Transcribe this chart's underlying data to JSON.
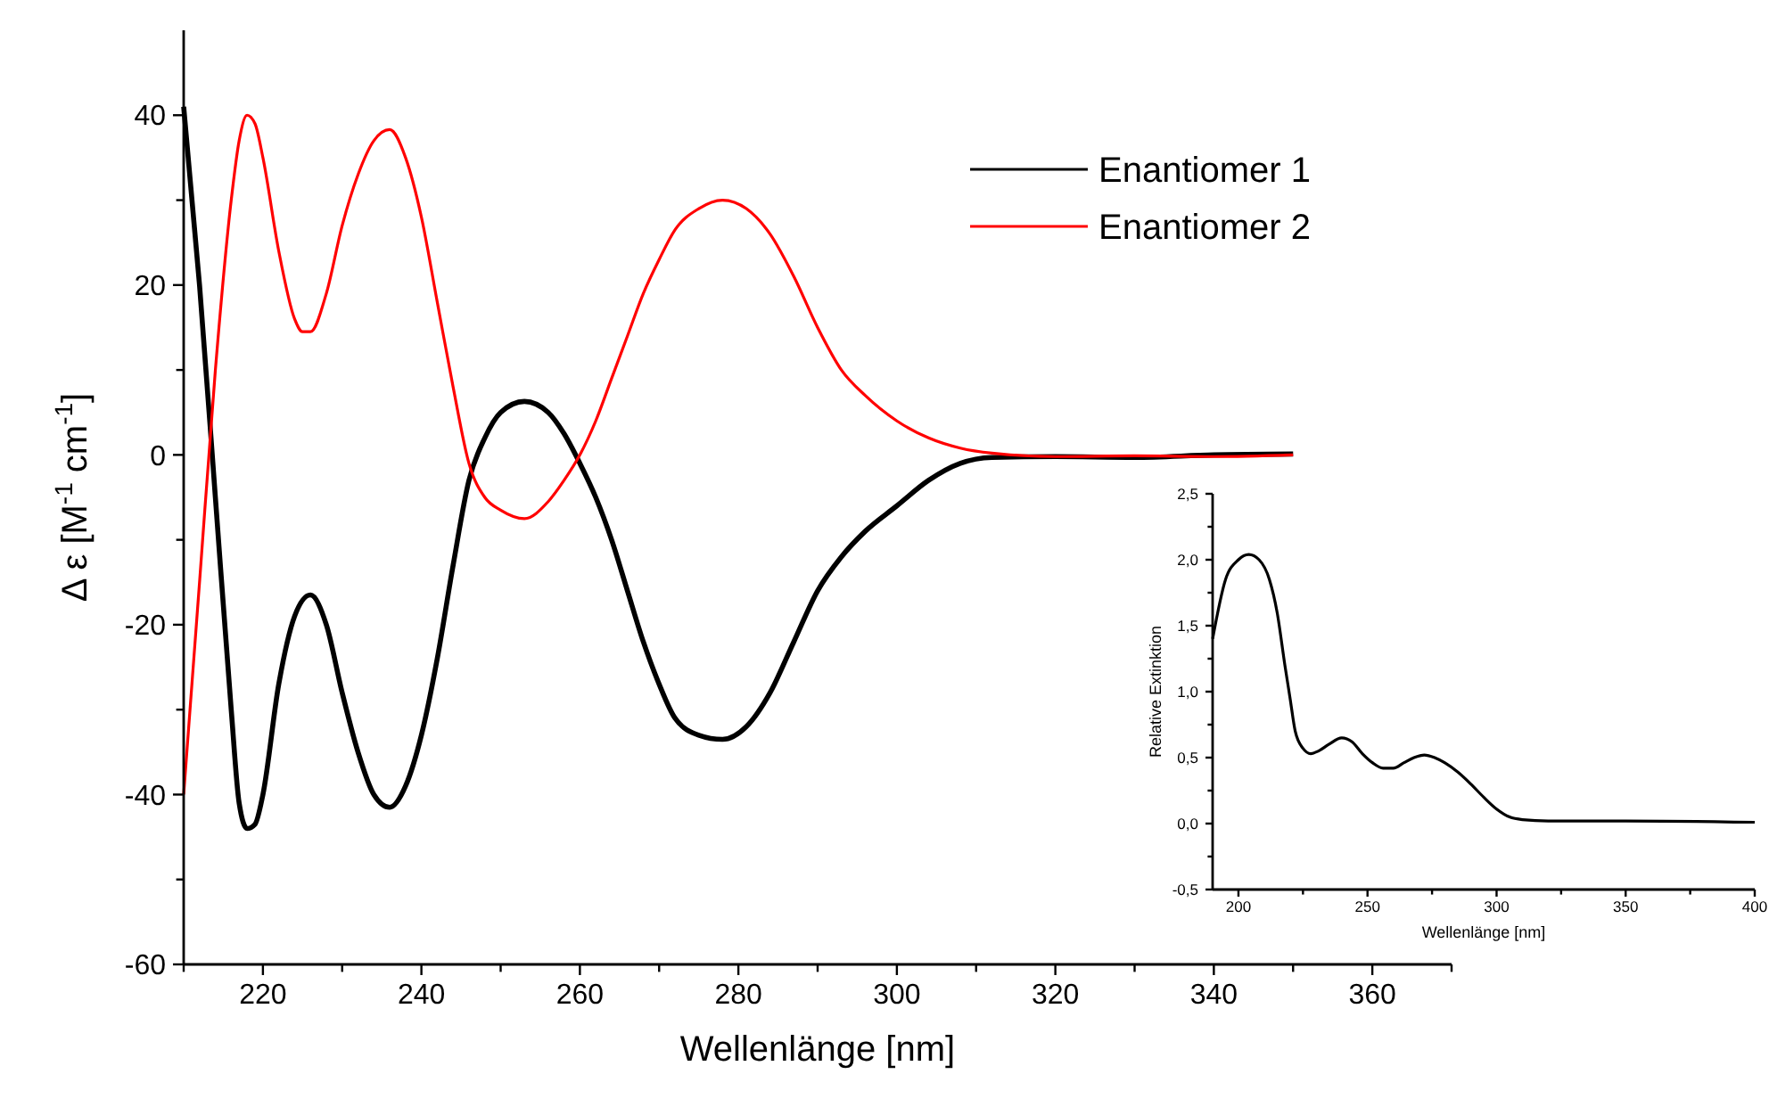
{
  "chart_data": [
    {
      "type": "line",
      "xlabel": "Wellenlänge [nm]",
      "ylabel": "Δ ε [M$^{-1}$ cm$^{-1}$]",
      "xlim": [
        210,
        370
      ],
      "ylim": [
        -60,
        50
      ],
      "xticks": [
        {
          "value": 210,
          "label": null
        },
        220,
        {
          "value": 230,
          "label": null
        },
        240,
        {
          "value": 250,
          "label": null
        },
        260,
        {
          "value": 270,
          "label": null
        },
        280,
        {
          "value": 290,
          "label": null
        },
        300,
        {
          "value": 310,
          "label": null
        },
        320,
        {
          "value": 330,
          "label": null
        },
        340,
        {
          "value": 350,
          "label": null
        },
        360,
        {
          "value": 370,
          "label": null
        }
      ],
      "yticks": [
        -60,
        {
          "value": -50,
          "label": null
        },
        -40,
        {
          "value": -30,
          "label": null
        },
        -20,
        {
          "value": -10,
          "label": null
        },
        0,
        {
          "value": 10,
          "label": null
        },
        20,
        {
          "value": 30,
          "label": null
        },
        40
      ],
      "legend": "top right",
      "series": [
        {
          "name": "Enantiomer 1",
          "color": "#000000",
          "x": [
            210,
            212,
            214,
            216,
            217,
            218,
            219,
            220,
            222,
            224,
            226,
            228,
            230,
            232,
            234,
            236,
            238,
            240,
            242,
            244,
            246,
            248,
            250,
            253,
            256,
            258,
            260,
            262,
            264,
            266,
            268,
            270,
            272,
            275,
            278,
            281,
            284,
            287,
            290,
            293,
            296,
            300,
            304,
            308,
            312,
            320,
            330,
            340,
            350
          ],
          "values": [
            41,
            20,
            -5,
            -30,
            -41,
            -44,
            -43.5,
            -40,
            -27,
            -19,
            -16.5,
            -20,
            -28,
            -35,
            -40,
            -41.5,
            -39,
            -33,
            -24,
            -13,
            -3,
            2,
            5,
            6.3,
            5,
            2.5,
            -1,
            -5,
            -10,
            -16,
            -22,
            -27,
            -31,
            -33,
            -33.5,
            -32,
            -28,
            -22,
            -16,
            -12,
            -9,
            -6,
            -3,
            -1,
            -0.3,
            -0.2,
            -0.3,
            0,
            0.1
          ]
        },
        {
          "name": "Enantiomer 2",
          "color": "#ff0000",
          "x": [
            210,
            212,
            214,
            216,
            217,
            218,
            219,
            220,
            222,
            224,
            225,
            226,
            228,
            230,
            232,
            234,
            236,
            238,
            240,
            242,
            244,
            246,
            248,
            250,
            253,
            256,
            258,
            260,
            262,
            264,
            266,
            268,
            270,
            272,
            275,
            278,
            281,
            284,
            287,
            290,
            293,
            296,
            300,
            304,
            308,
            312,
            320,
            330,
            340,
            350
          ],
          "values": [
            -40,
            -15,
            10,
            30,
            37,
            40,
            39,
            35,
            24,
            16,
            14.5,
            14.5,
            19,
            27,
            33,
            37,
            38.3,
            35,
            28,
            18,
            8,
            -1,
            -5,
            -6.5,
            -7.5,
            -5.5,
            -3,
            0,
            4,
            9,
            14,
            19,
            23,
            26.5,
            29,
            30,
            29,
            26,
            21,
            15,
            10,
            7,
            4,
            2,
            0.8,
            0.2,
            -0.2,
            -0.1,
            -0.2,
            0
          ]
        }
      ]
    },
    {
      "type": "line",
      "xlabel": "Wellenlänge [nm]",
      "ylabel": "Relative Extinktion",
      "xlim": [
        190,
        400
      ],
      "ylim": [
        -0.5,
        2.5
      ],
      "xticks": [
        200,
        {
          "value": 225,
          "label": null
        },
        250,
        {
          "value": 275,
          "label": null
        },
        300,
        {
          "value": 325,
          "label": null
        },
        350,
        {
          "value": 375,
          "label": null
        },
        400
      ],
      "yticks": [
        {
          "value": -0.5,
          "label": "-0,5"
        },
        {
          "value": -0.25,
          "label": null
        },
        {
          "value": 0,
          "label": "0,0"
        },
        {
          "value": 0.25,
          "label": null
        },
        {
          "value": 0.5,
          "label": "0,5"
        },
        {
          "value": 0.75,
          "label": null
        },
        {
          "value": 1,
          "label": "1,0"
        },
        {
          "value": 1.25,
          "label": null
        },
        {
          "value": 1.5,
          "label": "1,5"
        },
        {
          "value": 1.75,
          "label": null
        },
        {
          "value": 2,
          "label": "2,0"
        },
        {
          "value": 2.25,
          "label": null
        },
        {
          "value": 2.5,
          "label": "2,5"
        }
      ],
      "series": [
        {
          "color": "#000000",
          "x": [
            190,
            195,
            200,
            204,
            208,
            212,
            215,
            218,
            220,
            222,
            225,
            228,
            231,
            235,
            240,
            244,
            248,
            252,
            256,
            260,
            264,
            268,
            272,
            276,
            280,
            285,
            290,
            295,
            300,
            305,
            310,
            320,
            350,
            400
          ],
          "values": [
            1.4,
            1.85,
            2.0,
            2.04,
            2.0,
            1.85,
            1.6,
            1.2,
            0.95,
            0.7,
            0.57,
            0.53,
            0.55,
            0.6,
            0.65,
            0.62,
            0.53,
            0.46,
            0.42,
            0.42,
            0.46,
            0.5,
            0.52,
            0.5,
            0.46,
            0.39,
            0.3,
            0.2,
            0.11,
            0.05,
            0.03,
            0.02,
            0.02,
            0.01
          ]
        }
      ]
    }
  ]
}
